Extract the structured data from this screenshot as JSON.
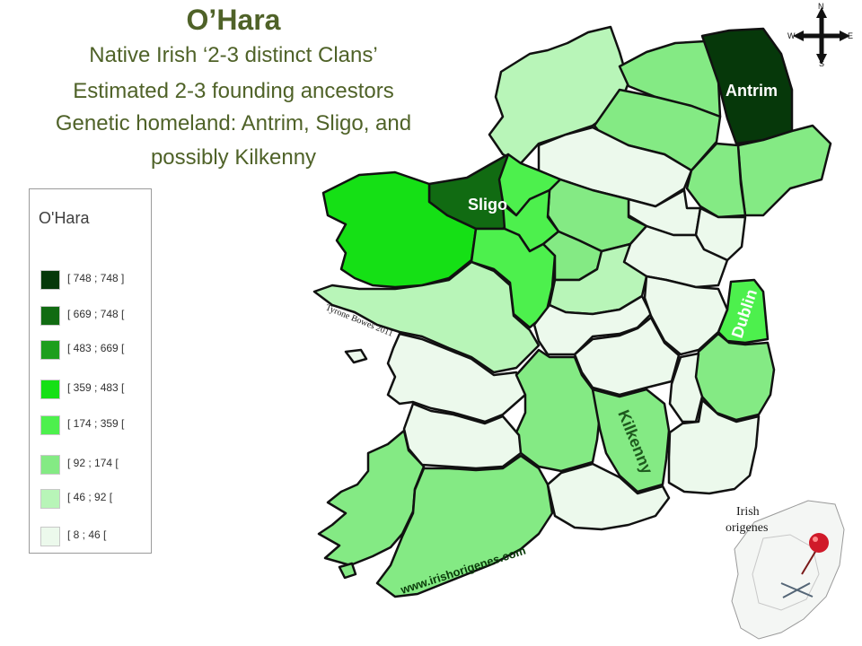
{
  "header": {
    "title": "O’Hara",
    "lines": [
      "Native Irish ‘2-3 distinct Clans’",
      "Estimated 2-3 founding ancestors",
      "Genetic homeland: Antrim, Sligo, and",
      "possibly Kilkenny"
    ]
  },
  "legend": {
    "title": "O'Hara",
    "items": [
      {
        "label": "[ 748 ; 748 ]",
        "color": "#06380a"
      },
      {
        "label": "[ 669 ; 748 [",
        "color": "#116b12"
      },
      {
        "label": "[ 483 ; 669 [",
        "color": "#1d9e1d"
      },
      {
        "label": "[ 359 ; 483 [",
        "color": "#15e015"
      },
      {
        "label": "[ 174 ; 359 [",
        "color": "#4df04d"
      },
      {
        "label": "[ 92 ; 174 [",
        "color": "#84ea84"
      },
      {
        "label": "[ 46 ; 92 [",
        "color": "#b8f5b8"
      },
      {
        "label": "[ 8 ; 46 [",
        "color": "#ecf9ec"
      }
    ]
  },
  "map": {
    "labels": {
      "antrim": "Antrim",
      "sligo": "Sligo",
      "dublin": "Dublin",
      "kilkenny": "Kilkenny",
      "credit": "Tyrone Bowes 2011",
      "website": "www.irishorigenes.com"
    }
  },
  "inset": {
    "line1": "Irish",
    "line2": "origenes"
  },
  "compass": {
    "n": "N",
    "s": "S",
    "e": "E",
    "w": "W"
  }
}
